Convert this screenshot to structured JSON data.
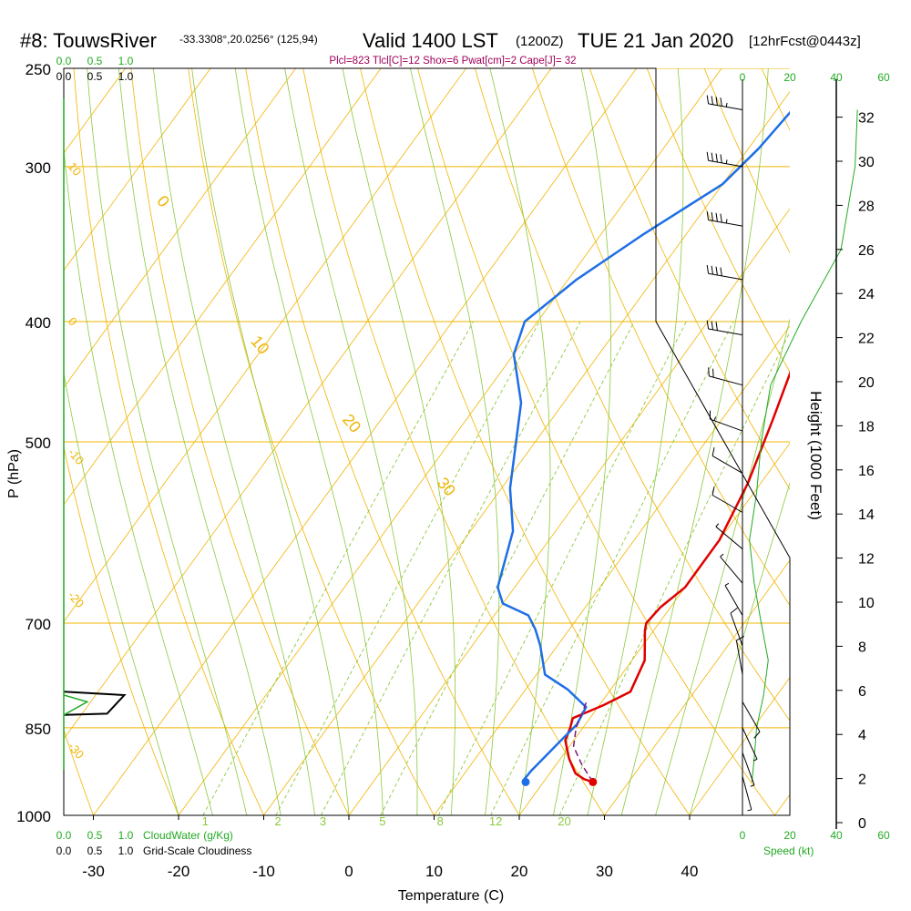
{
  "header": {
    "station": "#8: TouwsRiver",
    "coords": "-33.3308°,20.0256° (125,94)",
    "valid": "Valid 1400 LST",
    "utc": "(1200Z)",
    "date": "TUE 21 Jan 2020",
    "forecast": "[12hrFcst@0443z]",
    "indices": "Plcl=823 Tlcl[C]=12 Shox=6 Pwat[cm]=2 Cape[J]= 32"
  },
  "colors": {
    "isotherm": "#f0b400",
    "isobar": "#f0b400",
    "dry_adiabat": "#f0b400",
    "moist_adiabat": "#8cc83c",
    "mixing_ratio": "#8cc83c",
    "temperature": "#e00000",
    "dewpoint": "#1e6ee6",
    "parcel": "#7a1a7a",
    "cloud": "#22aa22",
    "indices_text": "#a0005a"
  },
  "chart_data": {
    "type": "line",
    "title": "Skew-T sounding #8: TouwsRiver",
    "xlabel": "Temperature (C)",
    "ylabel": "P (hPa)",
    "y2label": "Height (1000 Feet)",
    "x_ticks": [
      -30,
      -20,
      -10,
      0,
      10,
      20,
      30,
      40
    ],
    "pressure_ticks": [
      250,
      300,
      400,
      500,
      700,
      850,
      1000
    ],
    "isobars": [
      250,
      300,
      400,
      500,
      700,
      850,
      1000
    ],
    "isotherms_range": [
      -120,
      40,
      10
    ],
    "dry_adiabat_labels": [
      {
        "text": "10",
        "p": 300,
        "side": "left"
      },
      {
        "text": "0",
        "p": 400,
        "side": "left"
      },
      {
        "text": "-10",
        "p": 510,
        "side": "left"
      },
      {
        "text": "-20",
        "p": 665,
        "side": "left"
      },
      {
        "text": "-30",
        "p": 880,
        "side": "left"
      },
      {
        "text": "0",
        "p": 320,
        "side": "right"
      },
      {
        "text": "10",
        "p": 415,
        "side": "right"
      },
      {
        "text": "20",
        "p": 480,
        "side": "right"
      },
      {
        "text": "30",
        "p": 540,
        "side": "right"
      }
    ],
    "mixing_ratio_labels": [
      "1",
      "2",
      "3",
      "5",
      "8",
      "12",
      "20"
    ],
    "mixing_ratios_gkg": [
      1,
      2,
      3,
      5,
      8,
      12,
      20
    ],
    "series": [
      {
        "name": "Temperature",
        "points": [
          [
            25.8,
            940
          ],
          [
            24.5,
            935
          ],
          [
            23.0,
            925
          ],
          [
            21.0,
            900
          ],
          [
            19.0,
            870
          ],
          [
            18.5,
            850
          ],
          [
            18.0,
            835
          ],
          [
            20.5,
            815
          ],
          [
            22.5,
            795
          ],
          [
            21.5,
            750
          ],
          [
            19.0,
            710
          ],
          [
            18.5,
            700
          ],
          [
            18.8,
            680
          ],
          [
            20.0,
            655
          ],
          [
            20.0,
            600
          ],
          [
            18.5,
            540
          ],
          [
            16.0,
            480
          ],
          [
            13.0,
            420
          ],
          [
            9.0,
            370
          ],
          [
            4.0,
            320
          ],
          [
            -1.0,
            285
          ],
          [
            -4.2,
            265
          ]
        ]
      },
      {
        "name": "Dewpoint",
        "points": [
          [
            17.5,
            938
          ],
          [
            17.6,
            920
          ],
          [
            18.5,
            870
          ],
          [
            19.0,
            845
          ],
          [
            18.6,
            818
          ],
          [
            15.0,
            792
          ],
          [
            11.0,
            770
          ],
          [
            8.0,
            730
          ],
          [
            6.0,
            708
          ],
          [
            4.0,
            690
          ],
          [
            0.0,
            675
          ],
          [
            -2.0,
            655
          ],
          [
            -5.0,
            590
          ],
          [
            -9.0,
            545
          ],
          [
            -15.0,
            465
          ],
          [
            -20.0,
            425
          ],
          [
            -21.5,
            400
          ],
          [
            -19.0,
            370
          ],
          [
            -15.0,
            340
          ],
          [
            -10.0,
            310
          ],
          [
            -8.8,
            290
          ],
          [
            -8.0,
            265
          ]
        ]
      },
      {
        "name": "Parcel",
        "points": [
          [
            25.8,
            940
          ],
          [
            23.0,
            910
          ],
          [
            20.5,
            880
          ],
          [
            19.2,
            850
          ],
          [
            18.6,
            825
          ],
          [
            18.2,
            810
          ]
        ]
      }
    ],
    "surface_temp": {
      "t": 25.8,
      "p": 940
    },
    "surface_dewpoint": {
      "t": 17.9,
      "p": 940
    },
    "cloud_water": {
      "label": "CloudWater (g/Kg)",
      "scale_ticks": [
        "0.0",
        "0.5",
        "1.0"
      ]
    },
    "cloudiness": {
      "label": "Grid-Scale Cloudiness",
      "scale_ticks": [
        "0.0",
        "0.5",
        "1.0"
      ],
      "points": [
        [
          0.0,
          795
        ],
        [
          0.7,
          800
        ],
        [
          0.5,
          828
        ],
        [
          0.0,
          830
        ]
      ]
    },
    "wind_speed": {
      "label": "Speed (kt)",
      "ticks": [
        "0",
        "20",
        "40",
        "60"
      ],
      "profile_kt": [
        [
          4,
          940
        ],
        [
          5,
          900
        ],
        [
          6,
          850
        ],
        [
          9,
          800
        ],
        [
          11,
          750
        ],
        [
          8,
          700
        ],
        [
          5,
          650
        ],
        [
          3,
          600
        ],
        [
          6,
          550
        ],
        [
          8,
          500
        ],
        [
          12,
          450
        ],
        [
          25,
          400
        ],
        [
          42,
          350
        ],
        [
          48,
          300
        ],
        [
          49,
          270
        ]
      ]
    },
    "height_ticks_kft": [
      0,
      2,
      4,
      6,
      8,
      10,
      12,
      14,
      16,
      18,
      20,
      22,
      24,
      26,
      28,
      30,
      32
    ],
    "wind_barbs": [
      {
        "p": 270,
        "dir": 280,
        "kt": 45
      },
      {
        "p": 300,
        "dir": 280,
        "kt": 45
      },
      {
        "p": 335,
        "dir": 280,
        "kt": 45
      },
      {
        "p": 370,
        "dir": 280,
        "kt": 40
      },
      {
        "p": 410,
        "dir": 280,
        "kt": 30
      },
      {
        "p": 450,
        "dir": 285,
        "kt": 20
      },
      {
        "p": 490,
        "dir": 290,
        "kt": 15
      },
      {
        "p": 530,
        "dir": 300,
        "kt": 10
      },
      {
        "p": 570,
        "dir": 300,
        "kt": 10
      },
      {
        "p": 610,
        "dir": 310,
        "kt": 8
      },
      {
        "p": 650,
        "dir": 320,
        "kt": 8
      },
      {
        "p": 690,
        "dir": 330,
        "kt": 8
      },
      {
        "p": 730,
        "dir": 340,
        "kt": 10
      },
      {
        "p": 770,
        "dir": 350,
        "kt": 10
      },
      {
        "p": 810,
        "dir": 150,
        "kt": 10
      },
      {
        "p": 850,
        "dir": 155,
        "kt": 8
      },
      {
        "p": 890,
        "dir": 160,
        "kt": 6
      },
      {
        "p": 930,
        "dir": 165,
        "kt": 5
      }
    ]
  }
}
